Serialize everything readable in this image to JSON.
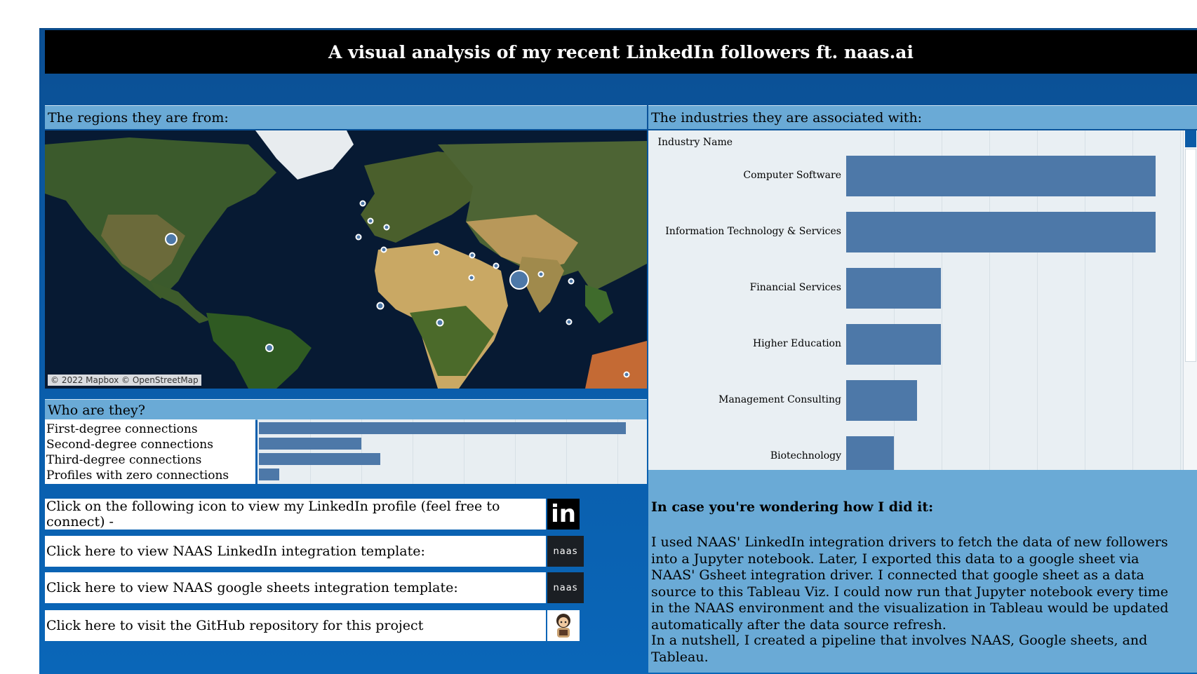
{
  "title": "A visual analysis of my recent LinkedIn followers ft. naas.ai",
  "regions": {
    "heading": "The regions they are from:",
    "attribution": "© 2022 Mapbox © OpenStreetMap"
  },
  "who": {
    "heading": "Who are they?",
    "rows": [
      {
        "label": "First-degree connections",
        "value": 1.0
      },
      {
        "label": "Second-degree connections",
        "value": 0.28
      },
      {
        "label": "Third-degree connections",
        "value": 0.33
      },
      {
        "label": "Profiles with zero connections",
        "value": 0.055
      }
    ]
  },
  "industries": {
    "heading": "The industries they are associated with:",
    "header_label": "Industry Name",
    "rows": [
      {
        "label": "Computer Software",
        "value": 1.0
      },
      {
        "label": "Information Technology & Services",
        "value": 1.0
      },
      {
        "label": "Financial Services",
        "value": 0.305
      },
      {
        "label": "Higher Education",
        "value": 0.305
      },
      {
        "label": "Management Consulting",
        "value": 0.23
      },
      {
        "label": "Biotechnology",
        "value": 0.155
      }
    ]
  },
  "links": {
    "linkedin_text": "Click on the following icon to view my LinkedIn profile (feel free to connect)  -",
    "naas_linkedin_text": "Click here to view NAAS LinkedIn integration template:",
    "naas_gsheets_text": "Click here to view NAAS google sheets integration template:",
    "github_text": "Click here to visit the GitHub repository for this project",
    "linkedin_icon": "in",
    "naas_icon": "naas"
  },
  "explanation": {
    "heading": "In case you're wondering how I did it:",
    "paragraph1": "I used NAAS' LinkedIn integration drivers to fetch the data of new followers into a Jupyter notebook. Later, I exported this data to a google sheet via NAAS' Gsheet integration driver. I connected that google sheet as a data source to this Tableau Viz. I could now run that Jupyter notebook every time in the NAAS environment and the visualization in Tableau would be updated automatically after the data source refresh.",
    "paragraph2": "In a nutshell, I created a pipeline that involves NAAS, Google sheets, and Tableau."
  },
  "colors": {
    "dashboard_bg": "#0a5aa6",
    "panel_header": "#6aaad6",
    "bar": "#4d78a8",
    "title_bg": "#000000"
  }
}
